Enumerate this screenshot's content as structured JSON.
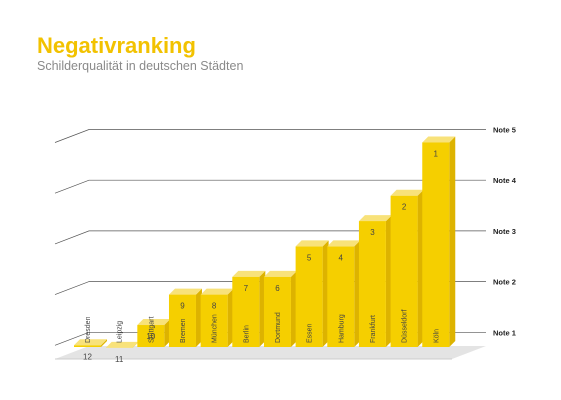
{
  "title": "Negativranking",
  "subtitle": "Schilderqualität in deutschen Städten",
  "chart_data": {
    "type": "bar",
    "categories": [
      "Dresden",
      "Leipzig",
      "Stuttgart",
      "Bremen",
      "München",
      "Berlin",
      "Dortmund",
      "Essen",
      "Hamburg",
      "Frankfurt",
      "Düsseldorf",
      "Köln"
    ],
    "rank_labels": [
      "12",
      "11",
      "10",
      "9",
      "8",
      "7",
      "6",
      "5",
      "4",
      "3",
      "2",
      "1"
    ],
    "values": [
      1.0,
      0.95,
      1.4,
      2.0,
      2.0,
      2.35,
      2.35,
      2.95,
      2.95,
      3.45,
      3.95,
      5.0
    ],
    "y_ticks": [
      {
        "value": 1,
        "label": "Note 1"
      },
      {
        "value": 2,
        "label": "Note 2"
      },
      {
        "value": 3,
        "label": "Note 3"
      },
      {
        "value": 4,
        "label": "Note 4"
      },
      {
        "value": 5,
        "label": "Note 5"
      }
    ],
    "ylim": [
      0,
      5
    ],
    "grid": true,
    "colors": {
      "front": "#f5cf00",
      "side": "#ddb300",
      "top": "#f8e27a",
      "floor": "#e4e4e4",
      "floor_edge": "#cccccc",
      "grid": "#555555"
    }
  }
}
